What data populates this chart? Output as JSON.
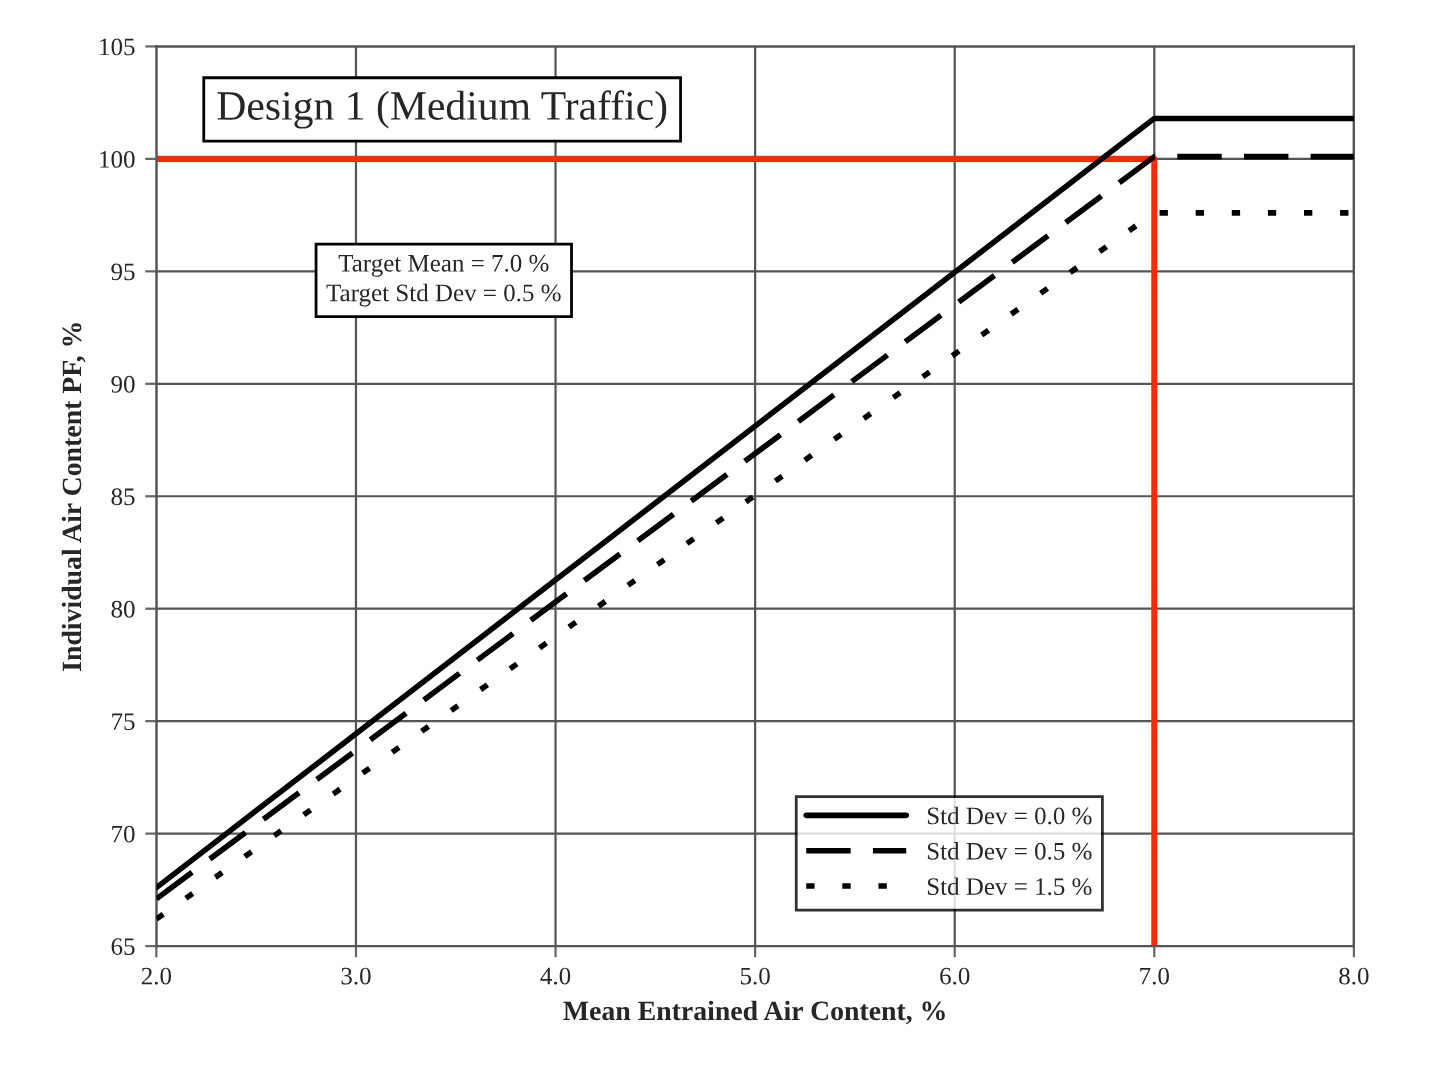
{
  "chart_data": {
    "type": "line",
    "title": "Design 1 (Medium Traffic)",
    "xlabel": "Mean Entrained Air Content, %",
    "ylabel": "Individual Air Content PF, %",
    "annotations": [
      "Target Mean = 7.0 %\nTarget Std Dev = 0.5 %"
    ],
    "series": [
      {
        "name": "Std Dev = 0.0 %",
        "color": "#000000",
        "line_style": "solid",
        "x": [
          2.0,
          7.0,
          8.0
        ],
        "values": [
          67.6,
          101.8,
          101.8
        ]
      },
      {
        "name": "Std Dev = 0.5 %",
        "color": "#000000",
        "line_style": "dashed",
        "x": [
          2.0,
          7.0,
          8.0
        ],
        "values": [
          67.1,
          100.1,
          100.1
        ]
      },
      {
        "name": "Std Dev = 1.5 %",
        "color": "#000000",
        "line_style": "dotted",
        "x": [
          2.0,
          7.0,
          7.05,
          8.0
        ],
        "values": [
          66.2,
          97.6,
          97.6,
          97.6
        ]
      },
      {
        "color": "#ff2a0a",
        "line_style": "solid",
        "x": [
          2.0,
          7.0,
          7.0
        ],
        "values": [
          100,
          100,
          65
        ]
      }
    ],
    "xlim": [
      2.0,
      8.0
    ],
    "xticks": [
      {
        "value": 2,
        "label": "2.0"
      },
      {
        "value": 3,
        "label": "3.0"
      },
      {
        "value": 4,
        "label": "4.0"
      },
      {
        "value": 5,
        "label": "5.0"
      },
      {
        "value": 6,
        "label": "6.0"
      },
      {
        "value": 7,
        "label": "7.0"
      },
      {
        "value": 8,
        "label": "8.0"
      }
    ],
    "ylim": [
      65,
      105
    ],
    "yticks": [
      65,
      70,
      75,
      80,
      85,
      90,
      95,
      100,
      105
    ],
    "grid": true,
    "legend": "bottom right",
    "marker": "none"
  }
}
